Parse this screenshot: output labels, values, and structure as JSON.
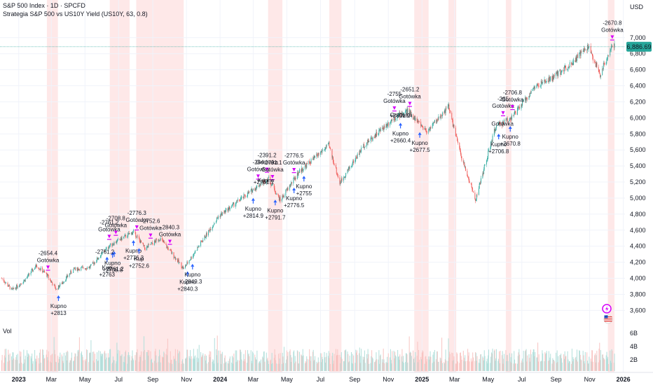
{
  "header": {
    "title": "S&P 500 Index · 1D · SPCFD",
    "subtitle": "Strategia S&P 500 vs US10Y Yield (US10Y, 63, 0.8)",
    "currency": "USD",
    "volume_label": "Vol"
  },
  "colors": {
    "up": "#26a69a",
    "down": "#ef5350",
    "highlight_band": "#fde0e0",
    "sell_marker": "#d500f9",
    "buy_marker": "#2962ff",
    "price_badge": "#26a69a",
    "volume_up": "#b2dfdb",
    "volume_down": "#f8c4c2"
  },
  "chart_data": {
    "type": "candlestick",
    "title": "S&P 500 Index · 1D · SPCFD",
    "x_axis": {
      "ticks": [
        "2023",
        "Mar",
        "May",
        "Jul",
        "Sep",
        "Nov",
        "2024",
        "Mar",
        "May",
        "Jul",
        "Sep",
        "Nov",
        "2025",
        "Mar",
        "May",
        "Jul",
        "Sep",
        "Nov",
        "2026"
      ],
      "tick_dates": [
        "2023-01-01",
        "2023-03-01",
        "2023-05-01",
        "2023-07-01",
        "2023-09-01",
        "2023-11-01",
        "2024-01-01",
        "2024-03-01",
        "2024-05-01",
        "2024-07-01",
        "2024-09-01",
        "2024-11-01",
        "2025-01-01",
        "2025-03-01",
        "2025-05-01",
        "2025-07-01",
        "2025-09-01",
        "2025-11-01",
        "2026-01-01"
      ],
      "range": [
        "2022-11-28",
        "2026-01-04"
      ]
    },
    "y_axis": {
      "ticks": [
        3600,
        3800,
        4000,
        4200,
        4400,
        4600,
        4800,
        5000,
        5200,
        5400,
        5600,
        5800,
        6000,
        6200,
        6400,
        6600,
        6800,
        7000
      ],
      "ylim": [
        3385,
        7225
      ],
      "unit": "USD"
    },
    "volume_axis": {
      "ticks": [
        "2B",
        "4B",
        "6B"
      ]
    },
    "last_price": 6886.69,
    "price_series": [
      [
        "2022-12-01",
        4000
      ],
      [
        "2022-12-20",
        3850
      ],
      [
        "2023-01-12",
        3980
      ],
      [
        "2023-02-02",
        4160
      ],
      [
        "2023-02-20",
        4050
      ],
      [
        "2023-03-10",
        3860
      ],
      [
        "2023-04-10",
        4110
      ],
      [
        "2023-05-10",
        4140
      ],
      [
        "2023-06-15",
        4410
      ],
      [
        "2023-07-28",
        4580
      ],
      [
        "2023-08-18",
        4370
      ],
      [
        "2023-09-14",
        4500
      ],
      [
        "2023-10-27",
        4120
      ],
      [
        "2023-12-29",
        4770
      ],
      [
        "2024-03-28",
        5250
      ],
      [
        "2024-04-19",
        4970
      ],
      [
        "2024-05-22",
        5320
      ],
      [
        "2024-07-16",
        5660
      ],
      [
        "2024-08-05",
        5190
      ],
      [
        "2024-09-18",
        5660
      ],
      [
        "2024-11-11",
        6000
      ],
      [
        "2024-12-06",
        6090
      ],
      [
        "2025-01-10",
        5830
      ],
      [
        "2025-02-18",
        6140
      ],
      [
        "2025-03-13",
        5520
      ],
      [
        "2025-04-08",
        4980
      ],
      [
        "2025-05-14",
        5880
      ],
      [
        "2025-06-16",
        6030
      ],
      [
        "2025-07-24",
        6380
      ],
      [
        "2025-08-28",
        6510
      ],
      [
        "2025-09-30",
        6690
      ],
      [
        "2025-10-29",
        6890
      ],
      [
        "2025-11-20",
        6540
      ],
      [
        "2025-12-10",
        6890
      ],
      [
        "2025-12-16",
        6886.69
      ]
    ],
    "highlight_periods": [
      [
        "2023-02-21",
        "2023-03-13"
      ],
      [
        "2023-06-15",
        "2023-07-21"
      ],
      [
        "2023-08-02",
        "2023-10-27"
      ],
      [
        "2024-03-28",
        "2024-04-23"
      ],
      [
        "2024-07-17",
        "2024-08-08"
      ],
      [
        "2024-12-18",
        "2025-01-13"
      ],
      [
        "2025-02-18",
        "2025-03-04"
      ],
      [
        "2025-06-02",
        "2025-06-12"
      ],
      [
        "2025-12-04",
        "2025-12-16"
      ]
    ],
    "sell_signals": [
      {
        "date": "2023-02-23",
        "label": "-2654.4",
        "action": "Gotówka"
      },
      {
        "date": "2023-06-14",
        "label": "-2761.2",
        "action": "Gotówka"
      },
      {
        "date": "2023-06-26",
        "label": "-2708.8",
        "action": "Gotówka"
      },
      {
        "date": "2023-08-03",
        "label": "-2776.3",
        "action": "Gotówka"
      },
      {
        "date": "2023-08-28",
        "label": "-2752.6",
        "action": "Gotówka"
      },
      {
        "date": "2023-10-02",
        "label": "-2840.3",
        "action": "Gotówka"
      },
      {
        "date": "2024-03-10",
        "label": "-284",
        "action": "Gotówka"
      },
      {
        "date": "2024-03-26",
        "label": "-2391.2",
        "action": "Gotówka"
      },
      {
        "date": "2024-04-05",
        "label": "-2791.1",
        "action": "Gotówka"
      },
      {
        "date": "2024-05-14",
        "label": "-2776.5",
        "action": "Gotówka"
      },
      {
        "date": "2024-11-12",
        "label": "-2755",
        "action": "Gotówka"
      },
      {
        "date": "2024-12-10",
        "label": "-2651.2",
        "action": "Gotówka"
      },
      {
        "date": "2025-05-28",
        "label": "-265",
        "action": "Gotówka"
      },
      {
        "date": "2025-06-14",
        "label": "-2706.8",
        "action": "Gotówka"
      },
      {
        "date": "2025-12-12",
        "label": "-2670.8",
        "action": "Gotówka"
      }
    ],
    "buy_signals": [
      {
        "date": "2023-03-14",
        "action": "Kupno",
        "label": "+2813"
      },
      {
        "date": "2023-06-10",
        "action": "Kup",
        "label": "+2763"
      },
      {
        "date": "2023-06-20",
        "action": "Kupno",
        "label": "+2708.8"
      },
      {
        "date": "2023-06-23",
        "action": "",
        "label": "-2761.2"
      },
      {
        "date": "2023-07-28",
        "action": "Kupno",
        "label": "+2776.3"
      },
      {
        "date": "2023-08-07",
        "action": "Kup",
        "label": "+2752.6"
      },
      {
        "date": "2023-11-03",
        "action": "Kupno",
        "label": "+2840.3"
      },
      {
        "date": "2023-11-12",
        "action": "Kupno",
        "label": "-2849.3"
      },
      {
        "date": "2024-03-01",
        "action": "Kupno",
        "label": "+2814.9"
      },
      {
        "date": "2024-04-10",
        "action": "Kupno",
        "label": "+2791.7"
      },
      {
        "date": "2024-05-14",
        "action": "Kupno",
        "label": "+2776.5"
      },
      {
        "date": "2024-06-01",
        "action": "Kupno",
        "label": "+2755"
      },
      {
        "date": "2024-11-23",
        "action": "Kupno",
        "label": "+2660.4"
      },
      {
        "date": "2024-12-28",
        "action": "Kupno",
        "label": "+2677.5"
      },
      {
        "date": "2025-05-20",
        "action": "Kupno",
        "label": "+2706.8"
      },
      {
        "date": "2025-06-10",
        "action": "Kupno",
        "label": "+2670.8"
      }
    ],
    "annotation_fragments": [
      {
        "date": "2023-06-06",
        "text": "-2761.2"
      },
      {
        "date": "2024-03-24",
        "text": "Kupno"
      },
      {
        "date": "2024-03-20",
        "text": "+2781.1"
      },
      {
        "date": "2024-11-22",
        "text": "+2651.2"
      },
      {
        "date": "2024-11-24",
        "text": "Gotówka"
      },
      {
        "date": "2025-05-27",
        "text": "Gotówka"
      }
    ]
  }
}
